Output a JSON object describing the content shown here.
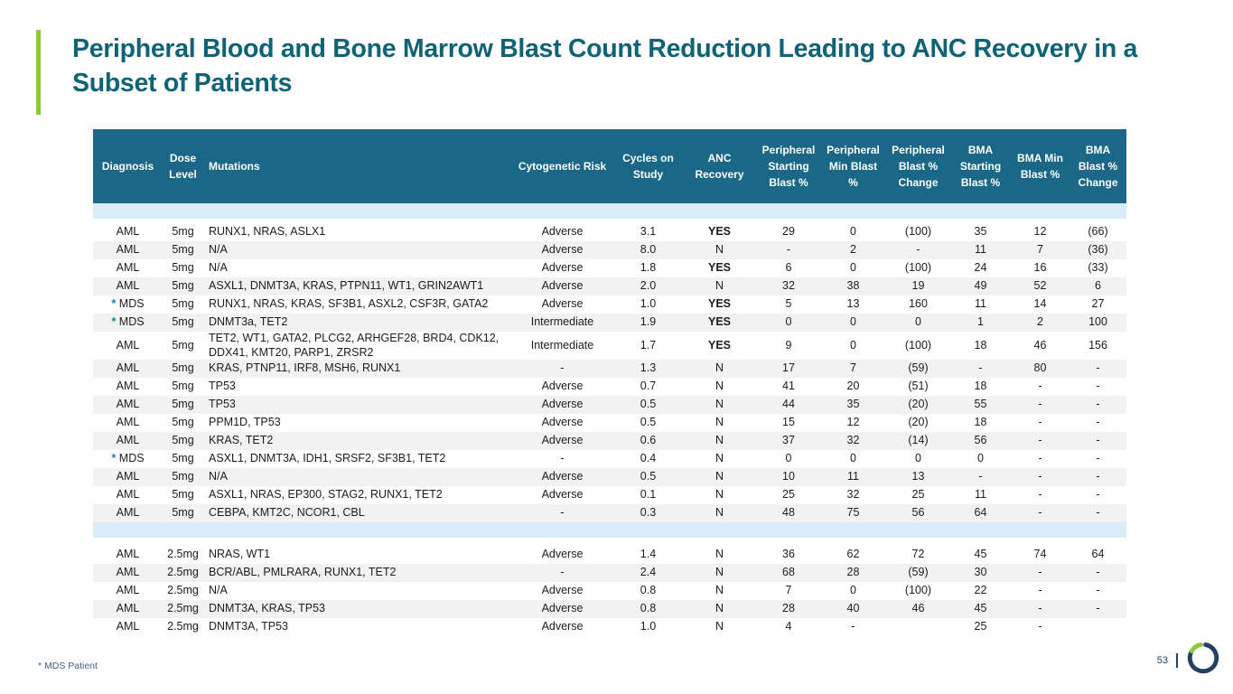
{
  "slide": {
    "title": "Peripheral Blood and Bone Marrow Blast Count Reduction Leading to ANC Recovery in a Subset of Patients",
    "footnote": "* MDS Patient",
    "page_number": "53"
  },
  "colors": {
    "accent_green": "#8dc63f",
    "title_teal": "#0e6377",
    "header_bg": "#1a6787",
    "separator_blue": "#d9edf9",
    "stripe_gray": "#f2f2f2",
    "asterisk_teal": "#1d7e9e",
    "footnote_blue": "#3f6080",
    "logo_navy": "#243f60"
  },
  "icons": {
    "logo": "ring-logo-icon"
  },
  "table": {
    "columns": [
      {
        "label": "Diagnosis",
        "align": "center"
      },
      {
        "label": "Dose Level",
        "align": "center"
      },
      {
        "label": "Mutations",
        "align": "left"
      },
      {
        "label": "Cytogenetic Risk",
        "align": "center"
      },
      {
        "label": "Cycles on Study",
        "align": "center"
      },
      {
        "label": "ANC Recovery",
        "align": "center"
      },
      {
        "label": "Peripheral Starting Blast %",
        "align": "center"
      },
      {
        "label": "Peripheral Min Blast %",
        "align": "center"
      },
      {
        "label": "Peripheral Blast % Change",
        "align": "center"
      },
      {
        "label": "BMA Starting Blast %",
        "align": "center"
      },
      {
        "label": "BMA Min Blast %",
        "align": "center"
      },
      {
        "label": "BMA Blast % Change",
        "align": "center"
      }
    ],
    "groups": [
      {
        "dose_group": "5mg",
        "rows": [
          {
            "mds": false,
            "cells": [
              "AML",
              "5mg",
              "RUNX1, NRAS, ASLX1",
              "Adverse",
              "3.1",
              "YES",
              "29",
              "0",
              "(100)",
              "35",
              "12",
              "(66)"
            ]
          },
          {
            "mds": false,
            "cells": [
              "AML",
              "5mg",
              "N/A",
              "Adverse",
              "8.0",
              "N",
              "-",
              "2",
              "-",
              "11",
              "7",
              "(36)"
            ]
          },
          {
            "mds": false,
            "cells": [
              "AML",
              "5mg",
              "N/A",
              "Adverse",
              "1.8",
              "YES",
              "6",
              "0",
              "(100)",
              "24",
              "16",
              "(33)"
            ]
          },
          {
            "mds": false,
            "cells": [
              "AML",
              "5mg",
              "ASXL1, DNMT3A, KRAS, PTPN11, WT1, GRIN2AWT1",
              "Adverse",
              "2.0",
              "N",
              "32",
              "38",
              "19",
              "49",
              "52",
              "6"
            ]
          },
          {
            "mds": true,
            "cells": [
              "MDS",
              "5mg",
              "RUNX1, NRAS, KRAS, SF3B1, ASXL2, CSF3R, GATA2",
              "Adverse",
              "1.0",
              "YES",
              "5",
              "13",
              "160",
              "11",
              "14",
              "27"
            ]
          },
          {
            "mds": true,
            "cells": [
              "MDS",
              "5mg",
              "DNMT3a, TET2",
              "Intermediate",
              "1.9",
              "YES",
              "0",
              "0",
              "0",
              "1",
              "2",
              "100"
            ]
          },
          {
            "mds": false,
            "cells": [
              "AML",
              "5mg",
              "TET2, WT1, GATA2, PLCG2, ARHGEF28, BRD4, CDK12, DDX41, KMT20, PARP1, ZRSR2",
              "Intermediate",
              "1.7",
              "YES",
              "9",
              "0",
              "(100)",
              "18",
              "46",
              "156"
            ]
          },
          {
            "mds": false,
            "cells": [
              "AML",
              "5mg",
              "KRAS, PTNP11, IRF8, MSH6, RUNX1",
              "-",
              "1.3",
              "N",
              "17",
              "7",
              "(59)",
              "-",
              "80",
              "-"
            ]
          },
          {
            "mds": false,
            "cells": [
              "AML",
              "5mg",
              "TP53",
              "Adverse",
              "0.7",
              "N",
              "41",
              "20",
              "(51)",
              "18",
              "-",
              "-"
            ]
          },
          {
            "mds": false,
            "cells": [
              "AML",
              "5mg",
              "TP53",
              "Adverse",
              "0.5",
              "N",
              "44",
              "35",
              "(20)",
              "55",
              "-",
              "-"
            ]
          },
          {
            "mds": false,
            "cells": [
              "AML",
              "5mg",
              "PPM1D, TP53",
              "Adverse",
              "0.5",
              "N",
              "15",
              "12",
              "(20)",
              "18",
              "-",
              "-"
            ]
          },
          {
            "mds": false,
            "cells": [
              "AML",
              "5mg",
              "KRAS, TET2",
              "Adverse",
              "0.6",
              "N",
              "37",
              "32",
              "(14)",
              "56",
              "-",
              "-"
            ]
          },
          {
            "mds": true,
            "cells": [
              "MDS",
              "5mg",
              "ASXL1, DNMT3A, IDH1, SRSF2, SF3B1, TET2",
              "-",
              "0.4",
              "N",
              "0",
              "0",
              "0",
              "0",
              "-",
              "-"
            ]
          },
          {
            "mds": false,
            "cells": [
              "AML",
              "5mg",
              "N/A",
              "Adverse",
              "0.5",
              "N",
              "10",
              "11",
              "13",
              "-",
              "-",
              "-"
            ]
          },
          {
            "mds": false,
            "cells": [
              "AML",
              "5mg",
              "ASXL1, NRAS, EP300, STAG2, RUNX1, TET2",
              "Adverse",
              "0.1",
              "N",
              "25",
              "32",
              "25",
              "11",
              "-",
              "-"
            ]
          },
          {
            "mds": false,
            "cells": [
              "AML",
              "5mg",
              "CEBPA, KMT2C, NCOR1, CBL",
              "-",
              "0.3",
              "N",
              "48",
              "75",
              "56",
              "64",
              "-",
              "-"
            ]
          }
        ]
      },
      {
        "dose_group": "2.5mg",
        "rows": [
          {
            "mds": false,
            "cells": [
              "AML",
              "2.5mg",
              "NRAS, WT1",
              "Adverse",
              "1.4",
              "N",
              "36",
              "62",
              "72",
              "45",
              "74",
              "64"
            ]
          },
          {
            "mds": false,
            "cells": [
              "AML",
              "2.5mg",
              "BCR/ABL, PMLRARA, RUNX1, TET2",
              "-",
              "2.4",
              "N",
              "68",
              "28",
              "(59)",
              "30",
              "-",
              "-"
            ]
          },
          {
            "mds": false,
            "cells": [
              "AML",
              "2.5mg",
              "N/A",
              "Adverse",
              "0.8",
              "N",
              "7",
              "0",
              "(100)",
              "22",
              "-",
              "-"
            ]
          },
          {
            "mds": false,
            "cells": [
              "AML",
              "2.5mg",
              "DNMT3A, KRAS, TP53",
              "Adverse",
              "0.8",
              "N",
              "28",
              "40",
              "46",
              "45",
              "-",
              "-"
            ]
          },
          {
            "mds": false,
            "cells": [
              "AML",
              "2.5mg",
              "DNMT3A, TP53",
              "Adverse",
              "1.0",
              "N",
              "4",
              "-",
              "",
              "25",
              "-",
              ""
            ]
          }
        ]
      }
    ]
  }
}
